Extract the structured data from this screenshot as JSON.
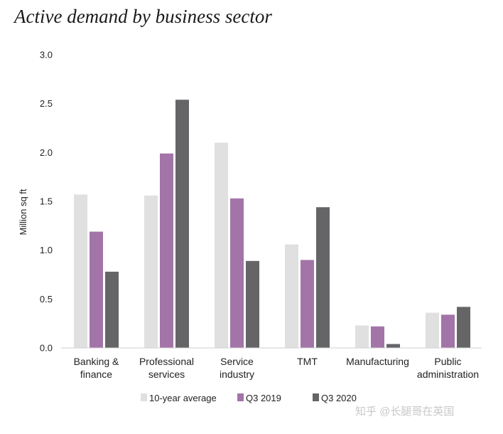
{
  "chart_data": {
    "type": "bar",
    "title": "Active demand by business sector",
    "xlabel": "",
    "ylabel": "Million sq ft",
    "ylim": [
      0,
      3.0
    ],
    "yticks": [
      "0.0",
      "0.5",
      "1.0",
      "1.5",
      "2.0",
      "2.5",
      "3.0"
    ],
    "categories": [
      [
        "Banking &",
        "finance"
      ],
      [
        "Professional",
        "services"
      ],
      [
        "Service",
        "industry"
      ],
      [
        "TMT"
      ],
      [
        "Manufacturing"
      ],
      [
        "Public",
        "administration"
      ]
    ],
    "series": [
      {
        "name": "10-year average",
        "color": "#e0e0e0",
        "values": [
          1.57,
          1.56,
          2.1,
          1.06,
          0.23,
          0.36
        ]
      },
      {
        "name": "Q3 2019",
        "color": "#a374a8",
        "values": [
          1.19,
          1.99,
          1.53,
          0.9,
          0.22,
          0.34
        ]
      },
      {
        "name": "Q3 2020",
        "color": "#656466",
        "values": [
          0.78,
          2.54,
          0.89,
          1.44,
          0.04,
          0.42
        ]
      }
    ],
    "legend_position": "bottom",
    "grid": false
  },
  "watermark": "知乎 @长腿哥在英国"
}
